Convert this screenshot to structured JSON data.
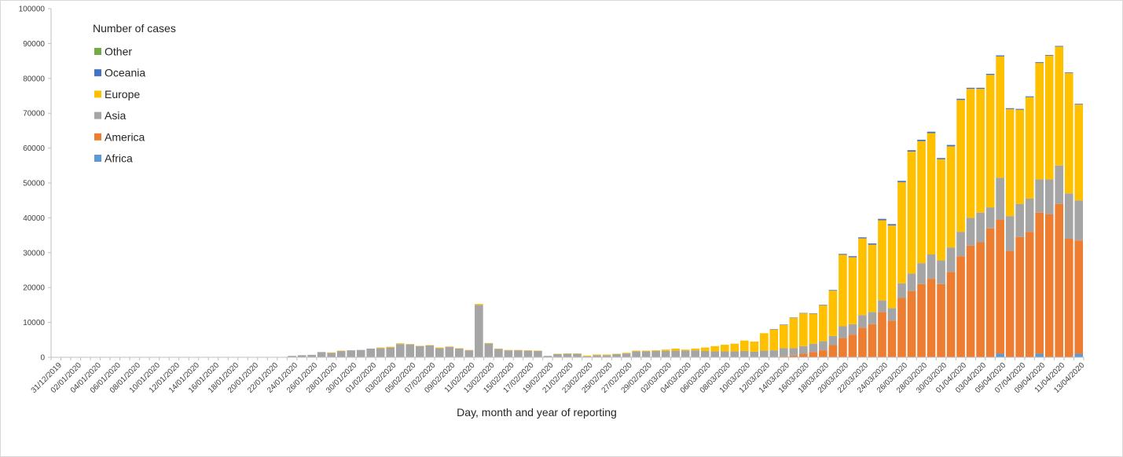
{
  "chart_data": {
    "type": "bar",
    "stacked": true,
    "xlabel": "Day, month and year of reporting",
    "ylabel": "",
    "ylim": [
      0,
      100000
    ],
    "yticks": [
      0,
      10000,
      20000,
      30000,
      40000,
      50000,
      60000,
      70000,
      80000,
      90000,
      100000
    ],
    "legend_title": "Number of cases",
    "legend_position": "top-left",
    "grid": false,
    "categories": [
      "31/12/2019",
      "01/01/2020",
      "02/01/2020",
      "03/01/2020",
      "04/01/2020",
      "05/01/2020",
      "06/01/2020",
      "07/01/2020",
      "08/01/2020",
      "09/01/2020",
      "10/01/2020",
      "11/01/2020",
      "12/01/2020",
      "13/01/2020",
      "14/01/2020",
      "15/01/2020",
      "16/01/2020",
      "17/01/2020",
      "18/01/2020",
      "19/01/2020",
      "20/01/2020",
      "21/01/2020",
      "22/01/2020",
      "23/01/2020",
      "24/01/2020",
      "25/01/2020",
      "26/01/2020",
      "27/01/2020",
      "28/01/2020",
      "29/01/2020",
      "30/01/2020",
      "31/01/2020",
      "01/02/2020",
      "02/02/2020",
      "03/02/2020",
      "04/02/2020",
      "05/02/2020",
      "06/02/2020",
      "07/02/2020",
      "08/02/2020",
      "09/02/2020",
      "10/02/2020",
      "11/02/2020",
      "12/02/2020",
      "13/02/2020",
      "14/02/2020",
      "15/02/2020",
      "16/02/2020",
      "17/02/2020",
      "18/02/2020",
      "19/02/2020",
      "20/02/2020",
      "21/02/2020",
      "22/02/2020",
      "23/02/2020",
      "24/02/2020",
      "25/02/2020",
      "26/02/2020",
      "27/02/2020",
      "28/02/2020",
      "29/02/2020",
      "01/03/2020",
      "02/03/2020",
      "03/03/2020",
      "04/03/2020",
      "05/03/2020",
      "06/03/2020",
      "07/03/2020",
      "08/03/2020",
      "09/03/2020",
      "10/03/2020",
      "11/03/2020",
      "12/03/2020",
      "13/03/2020",
      "14/03/2020",
      "15/03/2020",
      "16/03/2020",
      "17/03/2020",
      "18/03/2020",
      "19/03/2020",
      "20/03/2020",
      "21/03/2020",
      "22/03/2020",
      "23/03/2020",
      "24/03/2020",
      "25/03/2020",
      "26/03/2020",
      "27/03/2020",
      "28/03/2020",
      "29/03/2020",
      "30/03/2020",
      "31/03/2020",
      "01/04/2020",
      "02/04/2020",
      "03/04/2020",
      "04/04/2020",
      "05/04/2020",
      "06/04/2020",
      "07/04/2020",
      "08/04/2020",
      "09/04/2020",
      "10/04/2020",
      "11/04/2020",
      "12/04/2020",
      "13/04/2020"
    ],
    "tick_labels": [
      "31/12/2019",
      "02/01/2020",
      "04/01/2020",
      "06/01/2020",
      "08/01/2020",
      "10/01/2020",
      "12/01/2020",
      "14/01/2020",
      "16/01/2020",
      "18/01/2020",
      "20/01/2020",
      "22/01/2020",
      "24/01/2020",
      "26/01/2020",
      "28/01/2020",
      "30/01/2020",
      "01/02/2020",
      "03/02/2020",
      "05/02/2020",
      "07/02/2020",
      "09/02/2020",
      "11/02/2020",
      "13/02/2020",
      "15/02/2020",
      "17/02/2020",
      "19/02/2020",
      "21/02/2020",
      "23/02/2020",
      "25/02/2020",
      "27/02/2020",
      "29/02/2020",
      "02/03/2020",
      "04/03/2020",
      "06/03/2020",
      "08/03/2020",
      "10/03/2020",
      "12/03/2020",
      "14/03/2020",
      "16/03/2020",
      "18/03/2020",
      "20/03/2020",
      "22/03/2020",
      "24/03/2020",
      "26/03/2020",
      "28/03/2020",
      "30/03/2020",
      "01/04/2020",
      "03/04/2020",
      "05/04/2020",
      "07/04/2020",
      "09/04/2020",
      "11/04/2020",
      "13/04/2020"
    ],
    "series": [
      {
        "name": "Africa",
        "color": "#5B9BD5",
        "values": [
          0,
          0,
          0,
          0,
          0,
          0,
          0,
          0,
          0,
          0,
          0,
          0,
          0,
          0,
          0,
          0,
          0,
          0,
          0,
          0,
          0,
          0,
          0,
          0,
          0,
          0,
          0,
          0,
          0,
          0,
          0,
          0,
          0,
          0,
          0,
          0,
          0,
          0,
          0,
          0,
          0,
          0,
          0,
          0,
          0,
          0,
          0,
          0,
          0,
          0,
          0,
          0,
          0,
          0,
          0,
          0,
          0,
          0,
          0,
          0,
          0,
          0,
          0,
          0,
          0,
          0,
          0,
          0,
          0,
          0,
          0,
          0,
          0,
          0,
          0,
          0,
          0,
          0,
          0,
          0,
          0,
          0,
          0,
          0,
          0,
          0,
          0,
          0,
          0,
          0,
          0,
          0,
          0,
          0,
          0,
          0,
          1000,
          0,
          0,
          0,
          1000,
          0,
          0,
          0,
          1000
        ]
      },
      {
        "name": "America",
        "color": "#ED7D31",
        "values": [
          0,
          0,
          0,
          0,
          0,
          0,
          0,
          0,
          0,
          0,
          0,
          0,
          0,
          0,
          0,
          0,
          0,
          0,
          0,
          0,
          0,
          0,
          0,
          0,
          0,
          0,
          0,
          0,
          0,
          0,
          0,
          0,
          0,
          0,
          0,
          0,
          0,
          0,
          0,
          0,
          0,
          0,
          0,
          0,
          0,
          0,
          0,
          0,
          0,
          0,
          0,
          0,
          0,
          0,
          0,
          0,
          0,
          0,
          0,
          0,
          0,
          0,
          0,
          0,
          0,
          0,
          0,
          0,
          0,
          0,
          0,
          0,
          0,
          0,
          300,
          500,
          1000,
          1500,
          2000,
          3500,
          5500,
          6500,
          8500,
          9500,
          13000,
          10500,
          17000,
          19000,
          21000,
          22500,
          21000,
          24500,
          29000,
          32000,
          33000,
          37000,
          38500,
          30500,
          34500,
          36000,
          40500,
          41000,
          44000,
          34000,
          32500
        ]
      },
      {
        "name": "Asia",
        "color": "#A5A5A5",
        "values": [
          0,
          0,
          0,
          0,
          0,
          0,
          0,
          0,
          0,
          0,
          0,
          0,
          0,
          0,
          0,
          0,
          0,
          0,
          0,
          0,
          0,
          0,
          0,
          0,
          400,
          600,
          700,
          1500,
          1300,
          1800,
          2000,
          2100,
          2500,
          2600,
          2800,
          3800,
          3700,
          3200,
          3400,
          2600,
          3000,
          2500,
          2000,
          15000,
          4000,
          2400,
          2000,
          2000,
          1900,
          1800,
          400,
          900,
          1000,
          1000,
          300,
          600,
          600,
          900,
          1100,
          1700,
          1700,
          1800,
          1800,
          1900,
          1900,
          2000,
          1800,
          1700,
          1700,
          1700,
          1800,
          1600,
          1900,
          2000,
          2300,
          2100,
          2200,
          2400,
          2600,
          2600,
          3400,
          3000,
          3600,
          3500,
          3300,
          3600,
          4200,
          5000,
          6000,
          7000,
          6800,
          7000,
          7000,
          8000,
          8500,
          6000,
          12000,
          10000,
          9500,
          9500,
          9500,
          10000,
          11000,
          13000,
          11500
        ]
      },
      {
        "name": "Europe",
        "color": "#FFC000",
        "values": [
          0,
          0,
          0,
          0,
          0,
          0,
          0,
          0,
          0,
          0,
          0,
          0,
          0,
          0,
          0,
          0,
          0,
          0,
          0,
          0,
          0,
          0,
          0,
          0,
          0,
          0,
          0,
          0,
          100,
          100,
          0,
          0,
          0,
          200,
          200,
          200,
          100,
          100,
          100,
          200,
          100,
          100,
          100,
          300,
          100,
          100,
          100,
          100,
          100,
          100,
          0,
          100,
          100,
          100,
          200,
          200,
          200,
          100,
          200,
          200,
          200,
          200,
          400,
          600,
          300,
          500,
          1000,
          1500,
          1900,
          2200,
          3000,
          2900,
          5000,
          6000,
          6700,
          8700,
          9400,
          8600,
          10300,
          13000,
          20500,
          19200,
          22000,
          19300,
          23000,
          23700,
          29000,
          35000,
          35000,
          34800,
          29000,
          29000,
          37800,
          37000,
          35500,
          38000,
          34800,
          30700,
          27000,
          29100,
          33400,
          35500,
          34100,
          34500,
          27500
        ]
      },
      {
        "name": "Oceania",
        "color": "#4472C4",
        "values": [
          0,
          0,
          0,
          0,
          0,
          0,
          0,
          0,
          0,
          0,
          0,
          0,
          0,
          0,
          0,
          0,
          0,
          0,
          0,
          0,
          0,
          0,
          0,
          0,
          0,
          0,
          0,
          0,
          0,
          0,
          0,
          0,
          0,
          0,
          0,
          0,
          0,
          0,
          0,
          0,
          0,
          0,
          0,
          0,
          0,
          0,
          0,
          0,
          0,
          0,
          0,
          0,
          0,
          0,
          0,
          0,
          0,
          0,
          0,
          0,
          0,
          0,
          0,
          0,
          0,
          0,
          0,
          0,
          0,
          0,
          0,
          0,
          0,
          50,
          100,
          100,
          100,
          100,
          150,
          200,
          250,
          300,
          300,
          350,
          400,
          400,
          400,
          400,
          400,
          400,
          350,
          400,
          350,
          300,
          300,
          300,
          300,
          250,
          250,
          250,
          250,
          200,
          200,
          200,
          200
        ]
      },
      {
        "name": "Other",
        "color": "#70AD47",
        "values": [
          0,
          0,
          0,
          0,
          0,
          0,
          0,
          0,
          0,
          0,
          0,
          0,
          0,
          0,
          0,
          0,
          0,
          0,
          0,
          0,
          0,
          0,
          0,
          0,
          0,
          0,
          0,
          0,
          0,
          0,
          0,
          0,
          0,
          0,
          0,
          0,
          0,
          0,
          0,
          0,
          0,
          0,
          0,
          0,
          0,
          0,
          0,
          0,
          0,
          0,
          0,
          0,
          0,
          0,
          0,
          0,
          0,
          0,
          0,
          0,
          0,
          0,
          0,
          0,
          0,
          0,
          0,
          0,
          0,
          0,
          0,
          0,
          0,
          0,
          0,
          0,
          0,
          0,
          0,
          0,
          0,
          0,
          0,
          0,
          0,
          0,
          0,
          0,
          0,
          0,
          0,
          0,
          0,
          0,
          0,
          0,
          0,
          0,
          0,
          0,
          0,
          0,
          0,
          0,
          0
        ]
      }
    ],
    "legend_order": [
      "Other",
      "Oceania",
      "Europe",
      "Asia",
      "America",
      "Africa"
    ]
  }
}
